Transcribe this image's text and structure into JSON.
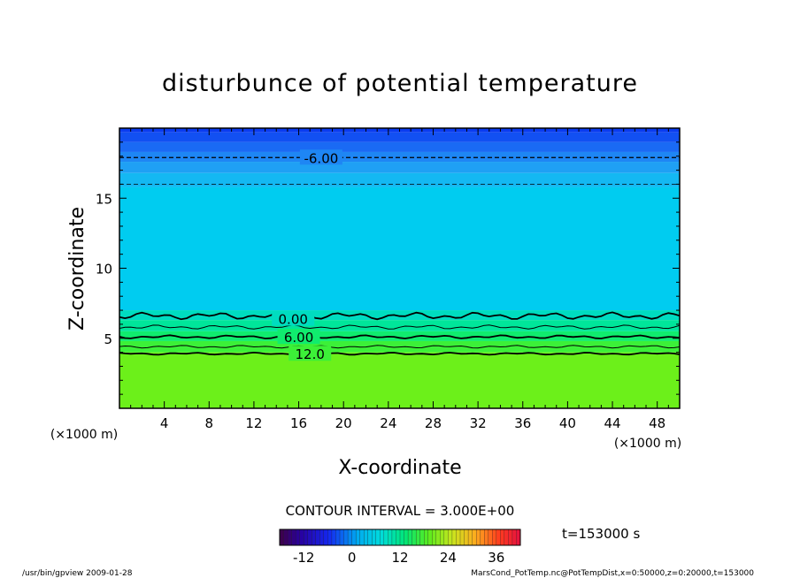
{
  "title": "disturbunce of potential temperature",
  "chart_data": {
    "type": "heatmap",
    "title": "disturbunce of potential temperature",
    "xlabel": "X-coordinate",
    "ylabel": "Z-coordinate",
    "x_unit": "(×1000 m)",
    "y_unit": "(×1000 m)",
    "xlim": [
      0,
      50
    ],
    "ylim": [
      0,
      20
    ],
    "x_ticks": [
      4,
      8,
      12,
      16,
      20,
      24,
      28,
      32,
      36,
      40,
      44,
      48
    ],
    "y_ticks": [
      5,
      10,
      15
    ],
    "contour_interval_text": "CONTOUR INTERVAL = 3.000E+00",
    "contour_labels": [
      {
        "text": "-6.00",
        "x": 18,
        "z": 17.9
      },
      {
        "text": "0.00",
        "x": 15.5,
        "z": 6.4
      },
      {
        "text": "6.00",
        "x": 16,
        "z": 5.1
      },
      {
        "text": "12.0",
        "x": 17,
        "z": 3.9
      }
    ],
    "layers": [
      {
        "z_from": 19.7,
        "z_to": 20.0,
        "value": -12,
        "color": "#0a3cf0"
      },
      {
        "z_from": 19.0,
        "z_to": 19.7,
        "value": -10,
        "color": "#1250f2"
      },
      {
        "z_from": 18.3,
        "z_to": 19.0,
        "value": -8,
        "color": "#1a6af4"
      },
      {
        "z_from": 17.6,
        "z_to": 18.3,
        "value": -6,
        "color": "#1e86f4"
      },
      {
        "z_from": 16.8,
        "z_to": 17.6,
        "value": -5,
        "color": "#1fa0f4"
      },
      {
        "z_from": 15.8,
        "z_to": 16.8,
        "value": -3,
        "color": "#14b8f2"
      },
      {
        "z_from": 7.0,
        "z_to": 15.8,
        "value": -1,
        "color": "#00ccf0"
      },
      {
        "z_from": 6.3,
        "z_to": 7.0,
        "value": 1,
        "color": "#00dcc0"
      },
      {
        "z_from": 5.5,
        "z_to": 6.3,
        "value": 4,
        "color": "#00e69a"
      },
      {
        "z_from": 4.8,
        "z_to": 5.5,
        "value": 7,
        "color": "#10ec6e"
      },
      {
        "z_from": 4.0,
        "z_to": 4.8,
        "value": 10,
        "color": "#3cf038"
      },
      {
        "z_from": 0.0,
        "z_to": 4.0,
        "value": 13,
        "color": "#6cf01a"
      }
    ],
    "colorbar": {
      "range": [
        -18,
        42
      ],
      "ticks": [
        -12,
        0,
        12,
        24,
        36
      ]
    },
    "time_label": "t=153000 s"
  },
  "footer": {
    "left": "/usr/bin/gpview   2009-01-28",
    "right": "MarsCond_PotTemp.nc@PotTempDist,x=0:50000,z=0:20000,t=153000"
  }
}
